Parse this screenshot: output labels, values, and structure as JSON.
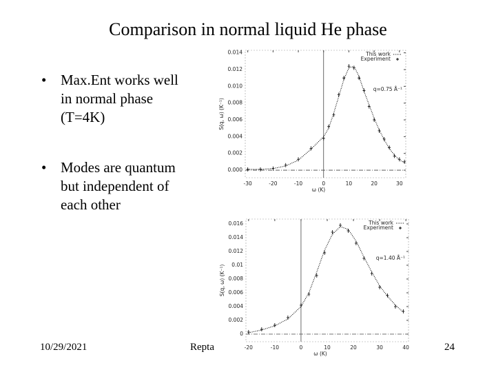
{
  "slide": {
    "title": "Comparison in normal liquid He phase",
    "bullets": [
      "Max.Ent works well in normal phase (T=4K)",
      "Modes are quantum but independent of each other"
    ],
    "footer": {
      "date": "10/29/2021",
      "text": "Repta",
      "page": "24"
    }
  },
  "chart_data": [
    {
      "type": "line",
      "xlabel": "ω (K)",
      "ylabel": "S(q, ω) (K⁻¹)",
      "annotation": "q=0.75 Å⁻¹",
      "x": [
        -30,
        -25,
        -20,
        -15,
        -10,
        -5,
        0,
        2,
        4,
        6,
        8,
        10,
        12,
        14,
        16,
        18,
        20,
        22,
        24,
        26,
        28,
        30,
        32
      ],
      "series": [
        {
          "name": "This work",
          "color": "#000000",
          "values": [
            0.0001,
            0.0001,
            0.0002,
            0.0005,
            0.0012,
            0.0025,
            0.004,
            0.005,
            0.0068,
            0.0088,
            0.0108,
            0.0122,
            0.0124,
            0.0112,
            0.0094,
            0.0078,
            0.0062,
            0.0048,
            0.0036,
            0.0026,
            0.0018,
            0.0012,
            0.0009
          ]
        },
        {
          "name": "Experiment",
          "color": "#000000",
          "values": [
            0.0001,
            0.0001,
            0.0002,
            0.0006,
            0.0013,
            0.0026,
            0.0038,
            0.0052,
            0.0066,
            0.009,
            0.011,
            0.0124,
            0.0122,
            0.011,
            0.0095,
            0.0076,
            0.006,
            0.0047,
            0.0037,
            0.0027,
            0.0017,
            0.0013,
            0.001
          ]
        }
      ],
      "xlim": [
        -31,
        32.5
      ],
      "xticks": [
        -30,
        -20,
        -10,
        0,
        10,
        20,
        30
      ],
      "ylim": [
        -0.0009,
        0.0143
      ],
      "yticks": [
        {
          "value": 0,
          "label": "0.000"
        },
        0.002,
        0.004,
        0.006,
        0.008,
        {
          "value": 0.01,
          "label": "0.010"
        },
        0.012,
        0.014
      ]
    },
    {
      "type": "line",
      "xlabel": "ω (K)",
      "ylabel": "S(q, ω) (K⁻¹)",
      "annotation": "q=1.40 Å⁻¹",
      "x": [
        -20,
        -15,
        -10,
        -5,
        0,
        3,
        6,
        9,
        12,
        15,
        18,
        21,
        24,
        27,
        30,
        33,
        36,
        39
      ],
      "series": [
        {
          "name": "This work",
          "color": "#000000",
          "values": [
            0.0002,
            0.0006,
            0.0012,
            0.0022,
            0.004,
            0.006,
            0.009,
            0.0122,
            0.0145,
            0.0156,
            0.0152,
            0.0135,
            0.0112,
            0.009,
            0.007,
            0.0055,
            0.0042,
            0.0032
          ]
        },
        {
          "name": "Experiment",
          "color": "#000000",
          "values": [
            0.0003,
            0.0007,
            0.0013,
            0.0024,
            0.0042,
            0.0058,
            0.0085,
            0.0118,
            0.0148,
            0.0158,
            0.015,
            0.0132,
            0.011,
            0.0088,
            0.0068,
            0.0056,
            0.004,
            0.0033
          ]
        }
      ],
      "xlim": [
        -21,
        41
      ],
      "xticks": [
        -20,
        -10,
        0,
        10,
        20,
        30,
        40
      ],
      "ylim": [
        -0.0011,
        0.0167
      ],
      "yticks": [
        0,
        0.002,
        0.004,
        0.006,
        0.008,
        0.01,
        0.012,
        0.014,
        0.016
      ]
    }
  ]
}
